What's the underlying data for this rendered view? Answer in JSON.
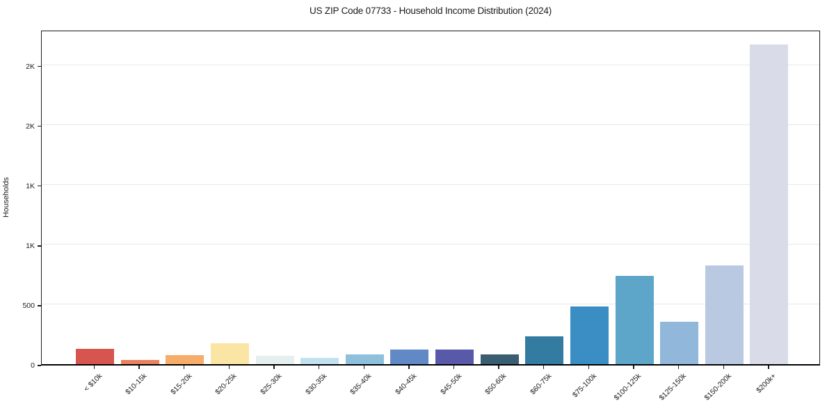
{
  "title": "US ZIP Code 07733 - Household Income Distribution (2024)",
  "chart_data": {
    "type": "bar",
    "title": "US ZIP Code 07733 - Household Income Distribution (2024)",
    "xlabel": "",
    "ylabel": "Households",
    "categories": [
      "< $10k",
      "$10-15k",
      "$15-20k",
      "$20-25k",
      "$25-30k",
      "$30-35k",
      "$35-40k",
      "$40-45k",
      "$45-50k",
      "$50-60k",
      "$60-75k",
      "$75-100k",
      "$100-125k",
      "$125-150k",
      "$150-200k",
      "$200k+"
    ],
    "values": [
      130,
      35,
      76,
      175,
      70,
      50,
      82,
      120,
      122,
      80,
      235,
      480,
      735,
      355,
      825,
      2670
    ],
    "bar_colors": [
      "#d6564f",
      "#e8815e",
      "#f7ad6a",
      "#fae5a5",
      "#e4f0ef",
      "#c2e1f0",
      "#8ec0dd",
      "#6089c5",
      "#5859a9",
      "#3a5d72",
      "#347ba1",
      "#3a8ec4",
      "#5ea5ca",
      "#91b8da",
      "#b8c9e1",
      "#d9dbe8"
    ],
    "ylim": [
      0,
      2800
    ],
    "yticks": [
      {
        "value": 0,
        "label": "0"
      },
      {
        "value": 500,
        "label": "500"
      },
      {
        "value": 1000,
        "label": "1K"
      },
      {
        "value": 1500,
        "label": "1K"
      },
      {
        "value": 2000,
        "label": "2K"
      },
      {
        "value": 2500,
        "label": "2K"
      }
    ],
    "grid": true,
    "legend_position": "none",
    "background_color": "#ffffff",
    "text_color": "#1a1a1a",
    "grid_color": "#e8e8e8",
    "axis_color": "#1a1a1a"
  }
}
